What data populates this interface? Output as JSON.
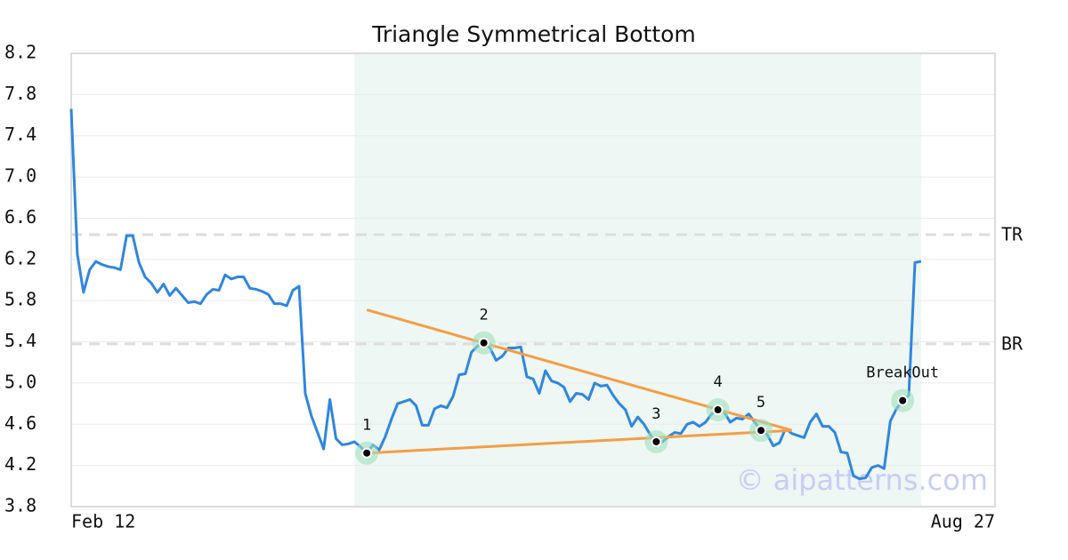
{
  "chart_data": {
    "type": "line",
    "title": "Triangle Symmetrical Bottom",
    "color": "#2f86e0",
    "categories": [
      "Feb 12",
      null,
      null,
      null,
      null,
      null,
      null,
      null,
      null,
      null,
      null,
      null,
      null,
      null,
      null,
      null,
      null,
      null,
      null,
      null,
      null,
      null,
      null,
      null,
      null,
      null,
      null,
      null,
      null,
      null,
      null,
      null,
      null,
      null,
      null,
      null,
      null,
      null,
      null,
      null,
      null,
      null,
      null,
      null,
      null,
      null,
      null,
      null,
      null,
      null,
      null,
      null,
      null,
      null,
      null,
      null,
      null,
      null,
      null,
      null,
      null,
      null,
      null,
      null,
      null,
      null,
      null,
      null,
      null,
      null,
      null,
      null,
      null,
      null,
      null,
      null,
      null,
      null,
      null,
      null,
      null,
      null,
      null,
      null,
      null,
      null,
      null,
      null,
      null,
      null,
      null,
      null,
      null,
      null,
      null,
      null,
      null,
      null,
      null,
      null,
      null,
      null,
      null,
      null,
      null,
      null,
      null,
      null,
      null,
      null,
      null,
      null,
      null,
      null,
      null,
      null,
      null,
      null,
      null,
      null,
      null,
      null,
      null,
      null,
      null,
      null,
      null,
      null,
      null,
      null,
      null,
      null,
      null,
      null,
      null,
      null,
      null,
      null,
      null,
      null,
      null,
      null,
      null,
      null,
      null,
      null,
      null,
      null,
      null,
      null,
      "Aug 27"
    ],
    "values": [
      7.66,
      6.25,
      5.88,
      6.1,
      6.18,
      6.15,
      6.13,
      6.12,
      6.1,
      6.43,
      6.43,
      6.17,
      6.03,
      5.97,
      5.88,
      5.96,
      5.85,
      5.92,
      5.85,
      5.78,
      5.79,
      5.77,
      5.86,
      5.91,
      5.9,
      6.05,
      6.01,
      6.03,
      6.03,
      5.92,
      5.91,
      5.89,
      5.86,
      5.77,
      5.77,
      5.75,
      5.9,
      5.94,
      4.9,
      4.68,
      4.52,
      4.36,
      4.84,
      4.46,
      4.4,
      4.41,
      4.43,
      4.38,
      4.32,
      4.4,
      4.35,
      4.48,
      4.65,
      4.8,
      4.82,
      4.84,
      4.78,
      4.59,
      4.59,
      4.75,
      4.78,
      4.76,
      4.87,
      5.08,
      5.09,
      5.3,
      5.36,
      5.39,
      5.34,
      5.22,
      5.26,
      5.34,
      5.34,
      5.35,
      5.06,
      5.04,
      4.9,
      5.12,
      5.02,
      5.0,
      4.96,
      4.82,
      4.9,
      4.89,
      4.84,
      5.0,
      4.97,
      4.98,
      4.88,
      4.8,
      4.74,
      4.58,
      4.67,
      4.6,
      4.5,
      4.43,
      4.43,
      4.48,
      4.52,
      4.51,
      4.6,
      4.62,
      4.58,
      4.62,
      4.7,
      4.74,
      4.72,
      4.62,
      4.66,
      4.65,
      4.7,
      4.62,
      4.54,
      4.5,
      4.39,
      4.42,
      4.56,
      4.51,
      4.49,
      4.47,
      4.62,
      4.7,
      4.58,
      4.58,
      4.52,
      4.33,
      4.32,
      4.1,
      4.07,
      4.08,
      4.18,
      4.2,
      4.17,
      4.63,
      4.75,
      4.83,
      4.88,
      6.17,
      6.18,
      null,
      null,
      null,
      null,
      null,
      null,
      null,
      null,
      null,
      null,
      null,
      null
    ],
    "ylim": [
      3.8,
      8.2
    ],
    "yticks": [
      3.8,
      {
        "value": 4.2,
        "label": "4.2"
      },
      4.6,
      {
        "value": 5.0,
        "label": "5.0"
      },
      5.4,
      5.8,
      6.2,
      6.6,
      {
        "value": 7.0,
        "label": "7.0"
      },
      7.4,
      7.8,
      8.2
    ],
    "grid": true,
    "highlight": {
      "start": 46,
      "end": 138,
      "color": "#eef7f3"
    },
    "levels": [
      {
        "label": "TR",
        "value": 6.44
      },
      {
        "label": "BR",
        "value": 5.38
      }
    ],
    "trend_lines": [
      {
        "x": [
          48,
          117
        ],
        "y": [
          5.71,
          4.54
        ]
      },
      {
        "x": [
          48,
          117
        ],
        "y": [
          4.32,
          4.54
        ]
      }
    ],
    "trend_color": "#f59d45",
    "points": [
      {
        "label": "1",
        "x": 48,
        "y": 4.32
      },
      {
        "label": "2",
        "x": 67,
        "y": 5.39
      },
      {
        "label": "3",
        "x": 95,
        "y": 4.43
      },
      {
        "label": "4",
        "x": 105,
        "y": 4.74
      },
      {
        "label": "5",
        "x": 112,
        "y": 4.54
      },
      {
        "label": "BreakOut",
        "x": 135,
        "y": 4.83
      }
    ],
    "watermark": "© aipatterns.com"
  }
}
